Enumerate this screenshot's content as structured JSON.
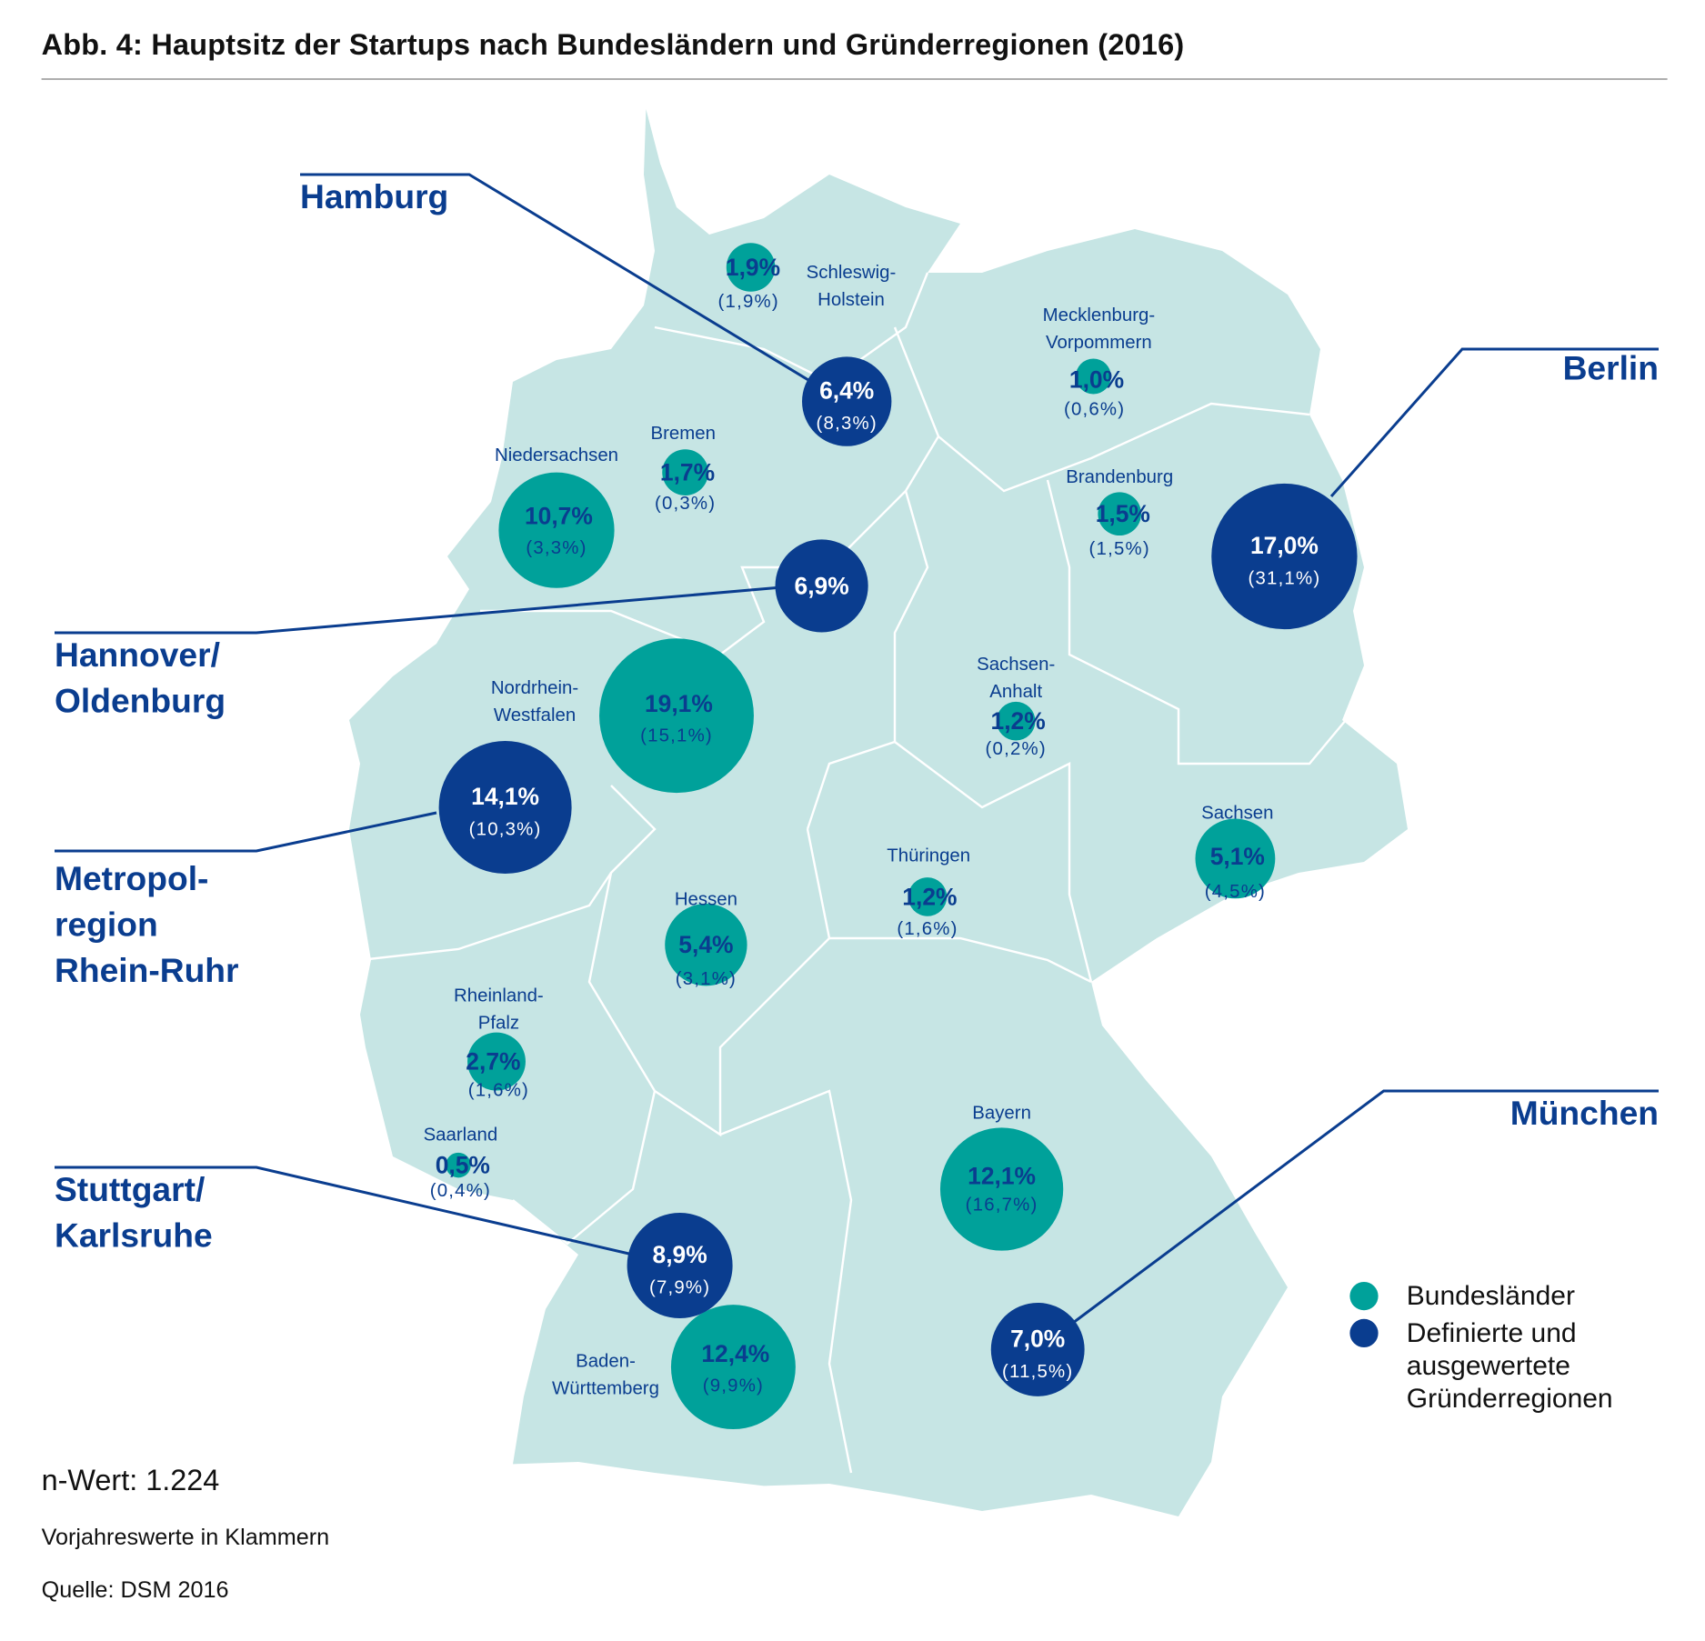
{
  "title": "Abb. 4: Hauptsitz der Startups nach Bundesländern und Gründerregionen (2016)",
  "colors": {
    "land": "#c6e5e4",
    "bundesland": "#00a19a",
    "region": "#0a3d8f",
    "border": "#ffffff"
  },
  "chart_data": {
    "type": "bubble-map",
    "title": "Abb. 4: Hauptsitz der Startups nach Bundesländern und Gründerregionen (2016)",
    "unit": "%",
    "bundeslaender": [
      {
        "name": "Schleswig-\nHolstein",
        "value": 1.9,
        "value_label": "1,9%",
        "prev": 1.9,
        "prev_label": "(1,9%)"
      },
      {
        "name": "Mecklenburg-\nVorpommern",
        "value": 1.0,
        "value_label": "1,0%",
        "prev": 0.6,
        "prev_label": "(0,6%)"
      },
      {
        "name": "Bremen",
        "value": 1.7,
        "value_label": "1,7%",
        "prev": 0.3,
        "prev_label": "(0,3%)"
      },
      {
        "name": "Niedersachsen",
        "value": 10.7,
        "value_label": "10,7%",
        "prev": 3.3,
        "prev_label": "(3,3%)"
      },
      {
        "name": "Brandenburg",
        "value": 1.5,
        "value_label": "1,5%",
        "prev": 1.5,
        "prev_label": "(1,5%)"
      },
      {
        "name": "Nordrhein-\nWestfalen",
        "value": 19.1,
        "value_label": "19,1%",
        "prev": 15.1,
        "prev_label": "(15,1%)"
      },
      {
        "name": "Sachsen-\nAnhalt",
        "value": 1.2,
        "value_label": "1,2%",
        "prev": 0.2,
        "prev_label": "(0,2%)"
      },
      {
        "name": "Sachsen",
        "value": 5.1,
        "value_label": "5,1%",
        "prev": 4.5,
        "prev_label": "(4,5%)"
      },
      {
        "name": "Thüringen",
        "value": 1.2,
        "value_label": "1,2%",
        "prev": 1.6,
        "prev_label": "(1,6%)"
      },
      {
        "name": "Hessen",
        "value": 5.4,
        "value_label": "5,4%",
        "prev": 3.1,
        "prev_label": "(3,1%)"
      },
      {
        "name": "Rheinland-\nPfalz",
        "value": 2.7,
        "value_label": "2,7%",
        "prev": 1.6,
        "prev_label": "(1,6%)"
      },
      {
        "name": "Saarland",
        "value": 0.5,
        "value_label": "0,5%",
        "prev": 0.4,
        "prev_label": "(0,4%)"
      },
      {
        "name": "Bayern",
        "value": 12.1,
        "value_label": "12,1%",
        "prev": 16.7,
        "prev_label": "(16,7%)"
      },
      {
        "name": "Baden-\nWürttemberg",
        "value": 12.4,
        "value_label": "12,4%",
        "prev": 9.9,
        "prev_label": "(9,9%)"
      }
    ],
    "regionen": [
      {
        "name": "Hamburg",
        "value": 6.4,
        "value_label": "6,4%",
        "prev": 8.3,
        "prev_label": "(8,3%)"
      },
      {
        "name": "Berlin",
        "value": 17.0,
        "value_label": "17,0%",
        "prev": 31.1,
        "prev_label": "(31,1%)"
      },
      {
        "name": "Hannover/\nOldenburg",
        "value": 6.9,
        "value_label": "6,9%",
        "prev": null,
        "prev_label": null
      },
      {
        "name": "Metropol-\nregion\nRhein-Ruhr",
        "value": 14.1,
        "value_label": "14,1%",
        "prev": 10.3,
        "prev_label": "(10,3%)"
      },
      {
        "name": "Stuttgart/\nKarlsruhe",
        "value": 8.9,
        "value_label": "8,9%",
        "prev": 7.9,
        "prev_label": "(7,9%)"
      },
      {
        "name": "München",
        "value": 7.0,
        "value_label": "7,0%",
        "prev": 11.5,
        "prev_label": "(11,5%)"
      }
    ],
    "legend": [
      "Bundesländer",
      "Definierte und\nausgewertete\nGründerregionen"
    ]
  },
  "footer": {
    "n_value": "n-Wert: 1.224",
    "note": "Vorjahreswerte in Klammern",
    "source": "Quelle: DSM 2016"
  }
}
